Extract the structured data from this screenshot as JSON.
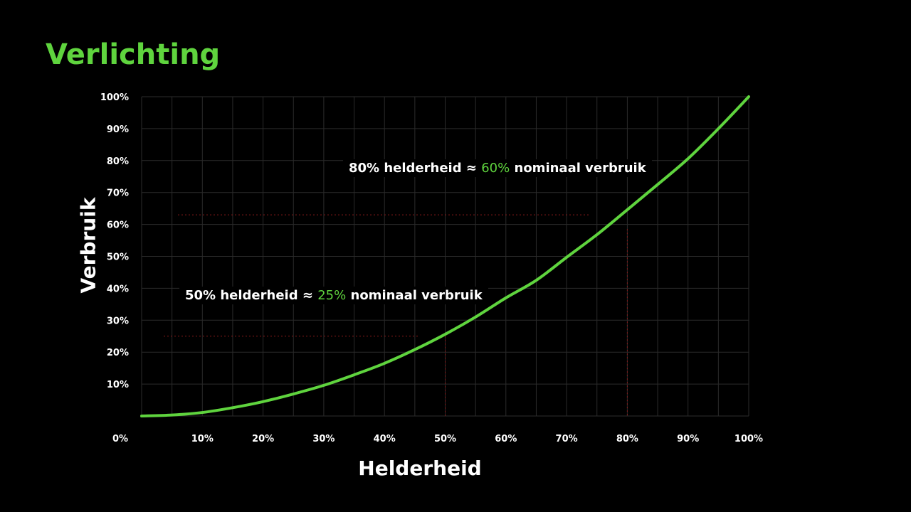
{
  "chart_data": {
    "type": "line",
    "title": "Verlichting",
    "xlabel": "Helderheid",
    "ylabel": "Verbruik",
    "xlim": [
      0,
      100
    ],
    "ylim": [
      0,
      100
    ],
    "grid": true,
    "x_ticks": [
      "0%",
      "10%",
      "20%",
      "30%",
      "40%",
      "50%",
      "60%",
      "70%",
      "80%",
      "90%",
      "100%"
    ],
    "y_ticks": [
      "10%",
      "20%",
      "30%",
      "40%",
      "50%",
      "60%",
      "70%",
      "80%",
      "90%",
      "100%"
    ],
    "series": [
      {
        "x": [
          0,
          5,
          10,
          15,
          20,
          25,
          30,
          35,
          40,
          45,
          50,
          55,
          60,
          65,
          70,
          75,
          80,
          85,
          90,
          95,
          100
        ],
        "y": [
          0,
          0.3,
          1.1,
          2.6,
          4.5,
          6.9,
          9.6,
          12.9,
          16.5,
          20.8,
          25.6,
          31,
          37,
          42.5,
          49.7,
          56.8,
          64.6,
          72.5,
          80.6,
          90,
          100
        ],
        "color": "#5fd43e"
      }
    ],
    "reference_lines": [
      {
        "x": 50,
        "y": 25,
        "color": "#8b1a1a"
      },
      {
        "x": 80,
        "y": 63,
        "color": "#8b1a1a"
      }
    ],
    "annotations": [
      {
        "pre": "80% helderheid ≈ ",
        "highlight": "60%",
        "post": " nominaal verbruik"
      },
      {
        "pre": "50% helderheid ≈ ",
        "highlight": "25%",
        "post": " nominaal verbruik"
      }
    ],
    "accent_color": "#5fd43e"
  }
}
